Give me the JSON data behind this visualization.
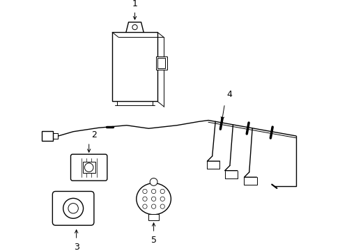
{
  "background_color": "#ffffff",
  "line_color": "#000000",
  "lw": 1.0,
  "tlw": 0.7,
  "figsize": [
    4.89,
    3.6
  ],
  "dpi": 100
}
